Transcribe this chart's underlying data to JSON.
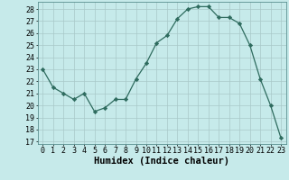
{
  "x": [
    0,
    1,
    2,
    3,
    4,
    5,
    6,
    7,
    8,
    9,
    10,
    11,
    12,
    13,
    14,
    15,
    16,
    17,
    18,
    19,
    20,
    21,
    22,
    23
  ],
  "y": [
    23,
    21.5,
    21,
    20.5,
    21,
    19.5,
    19.8,
    20.5,
    20.5,
    22.2,
    23.5,
    25.2,
    25.8,
    27.2,
    28.0,
    28.2,
    28.2,
    27.3,
    27.3,
    26.8,
    25.0,
    22.2,
    20.0,
    17.3
  ],
  "line_color": "#2e6b5e",
  "marker": "D",
  "marker_size": 2.2,
  "bg_color": "#c6eaea",
  "grid_color": "#a8c8c8",
  "xlabel": "Humidex (Indice chaleur)",
  "ylabel_ticks": [
    17,
    18,
    19,
    20,
    21,
    22,
    23,
    24,
    25,
    26,
    27,
    28
  ],
  "ylim": [
    16.8,
    28.6
  ],
  "xlim": [
    -0.5,
    23.5
  ],
  "xlabel_fontsize": 7.5,
  "tick_fontsize": 6.0
}
